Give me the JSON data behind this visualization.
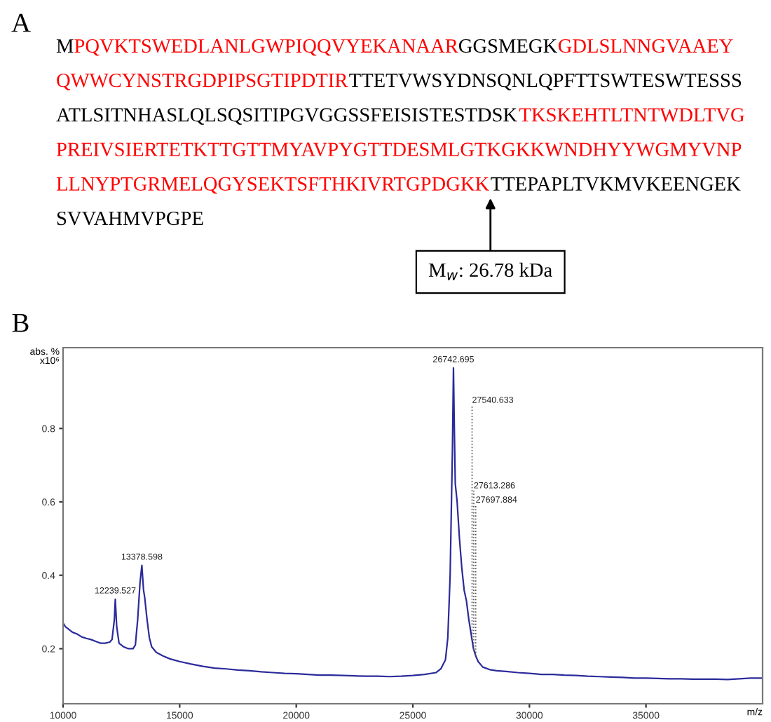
{
  "chart_data": [
    {
      "type": "other",
      "title": "A",
      "annotations": [
        "M",
        "PQVKTSWEDLANLGWPIQQVYEKANAAR",
        "GGSMEGK",
        "GDLSLNNGVAAEYQWWCYNSTRGDPIPSGTIPDTIR",
        "TTETVWSYDNSQNLQPFTTSWTESWTESSSATLSITNHASLQLSQSITIPGVGGSSFEISISTESTDSK",
        "TKSKEHTLTNTWDLTVGPREIVSIERTETKTTGTTMYAVPYGTTDESMLGTKGKKWNDHYYWGMYVNPLLNYPTGRMELQGYSEKTSFTHKIVRTGPDGKK",
        "TTEPAPLTVKMVKEENGEKSVVAHMVPGPE",
        "M$_{w}$: 26.78 kDa"
      ]
    },
    {
      "type": "line",
      "title": "B",
      "xlabel": "m/z",
      "ylabel": "abs. %\nx10⁶",
      "xlim": [
        10000,
        40000
      ],
      "ylim": [
        0.05,
        1.02
      ],
      "xticks": [
        10000,
        15000,
        20000,
        25000,
        30000,
        35000
      ],
      "yticks": [
        0.2,
        0.4,
        0.6,
        0.8
      ],
      "grid": false,
      "marker": "none",
      "line_style": "solid",
      "annotations": [
        {
          "text": "12239.527",
          "x": 12239.527,
          "y": 0.335
        },
        {
          "text": "13378.598",
          "x": 13378.598,
          "y": 0.427
        },
        {
          "text": "26742.695",
          "x": 26742.695,
          "y": 0.965
        }
      ],
      "ref_lines": [
        {
          "axis": "x",
          "value": 27540.633,
          "label": "27540.633",
          "line_style": "dotted",
          "color": "#555555"
        },
        {
          "axis": "x",
          "value": 27613.286,
          "label": "27613.286",
          "line_style": "dotted",
          "color": "#555555"
        },
        {
          "axis": "x",
          "value": 27697.884,
          "label": "27697.884",
          "line_style": "dotted",
          "color": "#555555"
        }
      ],
      "series": [
        {
          "color": "#2b2b9b",
          "x": [
            10000,
            10100,
            10200,
            10400,
            10600,
            10800,
            11000,
            11200,
            11400,
            11600,
            11800,
            12000,
            12100,
            12200,
            12239.527,
            12300,
            12400,
            12600,
            12800,
            13000,
            13100,
            13200,
            13300,
            13378.598,
            13450,
            13500,
            13600,
            13700,
            13800,
            14000,
            14300,
            14600,
            15000,
            15500,
            16000,
            16500,
            17000,
            17500,
            18000,
            18500,
            19000,
            19500,
            20000,
            20500,
            21000,
            21500,
            22000,
            22500,
            23000,
            23500,
            24000,
            24500,
            25000,
            25500,
            26000,
            26200,
            26400,
            26500,
            26600,
            26700,
            26742.695,
            26780,
            26820,
            26900,
            27000,
            27100,
            27200,
            27300,
            27400,
            27500,
            27600,
            27700,
            27800,
            28000,
            28300,
            28600,
            29000,
            29500,
            30000,
            30500,
            31000,
            31500,
            32000,
            32500,
            33000,
            33500,
            34000,
            34500,
            35000,
            35500,
            36000,
            36500,
            37000,
            37500,
            38000,
            38500,
            39000,
            39500,
            40000
          ],
          "values": [
            0.27,
            0.26,
            0.255,
            0.245,
            0.24,
            0.232,
            0.228,
            0.225,
            0.22,
            0.215,
            0.215,
            0.218,
            0.225,
            0.28,
            0.335,
            0.26,
            0.215,
            0.205,
            0.2,
            0.2,
            0.21,
            0.28,
            0.38,
            0.427,
            0.36,
            0.34,
            0.28,
            0.23,
            0.205,
            0.19,
            0.18,
            0.172,
            0.165,
            0.158,
            0.152,
            0.147,
            0.145,
            0.142,
            0.14,
            0.137,
            0.135,
            0.133,
            0.132,
            0.13,
            0.128,
            0.128,
            0.127,
            0.126,
            0.125,
            0.125,
            0.124,
            0.125,
            0.127,
            0.13,
            0.135,
            0.145,
            0.17,
            0.23,
            0.4,
            0.75,
            0.965,
            0.8,
            0.65,
            0.6,
            0.5,
            0.42,
            0.36,
            0.33,
            0.28,
            0.24,
            0.2,
            0.18,
            0.165,
            0.15,
            0.143,
            0.14,
            0.138,
            0.135,
            0.133,
            0.13,
            0.13,
            0.128,
            0.127,
            0.125,
            0.124,
            0.123,
            0.122,
            0.12,
            0.12,
            0.119,
            0.118,
            0.118,
            0.117,
            0.117,
            0.117,
            0.116,
            0.118,
            0.12,
            0.12
          ]
        }
      ]
    }
  ]
}
